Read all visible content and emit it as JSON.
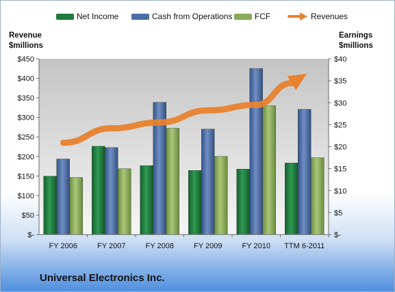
{
  "chart_data": {
    "type": "bar",
    "title": "Universal Electronics Inc.",
    "categories": [
      "FY 2006",
      "FY 2007",
      "FY 2008",
      "FY 2009",
      "FY 2010",
      "TTM 6-2011"
    ],
    "ylabel_left": "Revenue\n$millions",
    "ylabel_right": "Earnings\n$millions",
    "ylim_left": [
      0,
      450
    ],
    "ylim_right": [
      0,
      40
    ],
    "left_ticks": [
      "$-",
      "$50",
      "$100",
      "$150",
      "$200",
      "$250",
      "$300",
      "$350",
      "$400",
      "$450"
    ],
    "right_ticks": [
      "$-",
      "$5",
      "$10",
      "$15",
      "$20",
      "$25",
      "$30",
      "$35",
      "$40"
    ],
    "series": [
      {
        "name": "Net Income",
        "axis": "right",
        "color": "#1f7a3c",
        "values": [
          13.3,
          20.1,
          15.7,
          14.6,
          14.9,
          16.3
        ]
      },
      {
        "name": "Cash from Operations",
        "axis": "right",
        "color": "#4a6fa5",
        "values": [
          17.2,
          19.8,
          30.1,
          24.0,
          37.8,
          28.5
        ]
      },
      {
        "name": "FCF",
        "axis": "right",
        "color": "#8aab5a",
        "values": [
          13.0,
          15.0,
          24.2,
          17.8,
          29.3,
          17.5
        ]
      },
      {
        "name": "Revenues",
        "axis": "left",
        "type": "line",
        "color": "#e8822e",
        "values": [
          235,
          272,
          287,
          318,
          332,
          408
        ]
      }
    ],
    "grid": false,
    "legend_position": "top"
  }
}
